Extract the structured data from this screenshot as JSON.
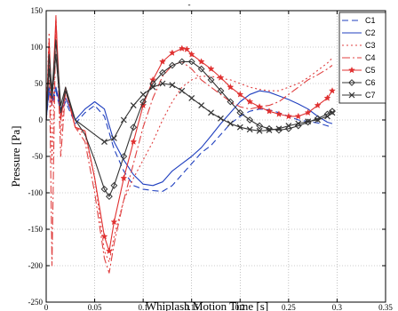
{
  "chart_data": {
    "type": "line",
    "title": "-",
    "xlabel": "Whiplash Motion Time [s]",
    "ylabel": "Pressure [Pa]",
    "xlim": [
      0,
      0.35
    ],
    "ylim": [
      -250,
      150
    ],
    "xticks": [
      0,
      0.05,
      0.1,
      0.15,
      0.2,
      0.25,
      0.3,
      0.35
    ],
    "xtick_labels": [
      "0",
      "0.05",
      "0.1",
      "0.15",
      "0.2",
      "0.25",
      "0.3",
      "0.35"
    ],
    "yticks": [
      -250,
      -200,
      -150,
      -100,
      -50,
      0,
      50,
      100,
      150
    ],
    "ytick_labels": [
      "-250",
      "-200",
      "-150",
      "-100",
      "-50",
      "0",
      "50",
      "100",
      "150"
    ],
    "grid": true,
    "legend_position": "top-right",
    "series": [
      {
        "name": "C1",
        "color": "#1f3fbf",
        "dash": "7,4",
        "marker": "none",
        "x": [
          0,
          0.003,
          0.006,
          0.01,
          0.015,
          0.02,
          0.03,
          0.04,
          0.05,
          0.06,
          0.07,
          0.08,
          0.09,
          0.1,
          0.11,
          0.12,
          0.13,
          0.14,
          0.15,
          0.16,
          0.17,
          0.18,
          0.19,
          0.2,
          0.21,
          0.22,
          0.23,
          0.24,
          0.25,
          0.26,
          0.27,
          0.28,
          0.29,
          0.295
        ],
        "y": [
          0,
          40,
          20,
          40,
          10,
          25,
          -5,
          10,
          20,
          5,
          -40,
          -70,
          -90,
          -95,
          -97,
          -98,
          -90,
          -75,
          -60,
          -45,
          -35,
          -20,
          -5,
          5,
          12,
          15,
          14,
          10,
          5,
          0,
          -2,
          -4,
          -8,
          -10
        ]
      },
      {
        "name": "C2",
        "color": "#1f3fbf",
        "dash": "",
        "marker": "none",
        "x": [
          0,
          0.003,
          0.006,
          0.01,
          0.015,
          0.02,
          0.03,
          0.04,
          0.05,
          0.06,
          0.07,
          0.08,
          0.09,
          0.1,
          0.11,
          0.12,
          0.13,
          0.14,
          0.15,
          0.16,
          0.17,
          0.18,
          0.19,
          0.2,
          0.21,
          0.22,
          0.23,
          0.24,
          0.25,
          0.26,
          0.27,
          0.28,
          0.29,
          0.295
        ],
        "y": [
          0,
          45,
          25,
          45,
          15,
          30,
          0,
          15,
          25,
          15,
          -30,
          -55,
          -75,
          -88,
          -90,
          -85,
          -70,
          -60,
          -50,
          -38,
          -22,
          -5,
          10,
          25,
          35,
          40,
          38,
          33,
          28,
          22,
          15,
          5,
          -3,
          -5
        ]
      },
      {
        "name": "C3",
        "color": "#e04040",
        "dash": "2,3",
        "marker": "none",
        "x": [
          0,
          0.003,
          0.006,
          0.01,
          0.015,
          0.02,
          0.03,
          0.04,
          0.05,
          0.06,
          0.065,
          0.07,
          0.08,
          0.09,
          0.1,
          0.11,
          0.12,
          0.13,
          0.14,
          0.15,
          0.16,
          0.17,
          0.18,
          0.19,
          0.2,
          0.21,
          0.22,
          0.23,
          0.24,
          0.25,
          0.26,
          0.27,
          0.28,
          0.29,
          0.295
        ],
        "y": [
          0,
          120,
          -60,
          130,
          -20,
          40,
          -10,
          -20,
          -80,
          -180,
          -195,
          -160,
          -110,
          -80,
          -55,
          -30,
          0,
          25,
          45,
          55,
          60,
          60,
          57,
          55,
          50,
          45,
          42,
          40,
          40,
          45,
          50,
          58,
          68,
          78,
          85
        ]
      },
      {
        "name": "C4",
        "color": "#e04040",
        "dash": "9,3,2,3",
        "marker": "none",
        "x": [
          0,
          0.003,
          0.006,
          0.01,
          0.015,
          0.02,
          0.03,
          0.04,
          0.05,
          0.06,
          0.065,
          0.07,
          0.08,
          0.09,
          0.1,
          0.11,
          0.12,
          0.13,
          0.14,
          0.15,
          0.16,
          0.17,
          0.18,
          0.19,
          0.2,
          0.21,
          0.22,
          0.23,
          0.24,
          0.25,
          0.26,
          0.27,
          0.28,
          0.29,
          0.295
        ],
        "y": [
          0,
          100,
          -200,
          145,
          -50,
          40,
          -10,
          -30,
          -100,
          -190,
          -210,
          -170,
          -110,
          -60,
          -10,
          30,
          60,
          75,
          80,
          70,
          55,
          45,
          35,
          25,
          18,
          15,
          18,
          20,
          25,
          35,
          45,
          55,
          62,
          70,
          75
        ]
      },
      {
        "name": "C5",
        "color": "#e03030",
        "dash": "",
        "marker": "star",
        "x": [
          0,
          0.003,
          0.006,
          0.01,
          0.015,
          0.02,
          0.03,
          0.04,
          0.05,
          0.06,
          0.065,
          0.07,
          0.08,
          0.09,
          0.1,
          0.11,
          0.12,
          0.13,
          0.14,
          0.145,
          0.15,
          0.16,
          0.17,
          0.18,
          0.19,
          0.2,
          0.21,
          0.22,
          0.23,
          0.24,
          0.25,
          0.26,
          0.27,
          0.28,
          0.29,
          0.295
        ],
        "y": [
          0,
          110,
          20,
          140,
          0,
          45,
          -10,
          -15,
          -80,
          -160,
          -180,
          -140,
          -80,
          -30,
          20,
          55,
          80,
          92,
          98,
          97,
          90,
          80,
          70,
          58,
          45,
          35,
          25,
          18,
          12,
          8,
          5,
          5,
          10,
          20,
          30,
          40
        ]
      },
      {
        "name": "C6",
        "color": "#333333",
        "dash": "",
        "marker": "diamond",
        "x": [
          0,
          0.003,
          0.006,
          0.01,
          0.015,
          0.02,
          0.03,
          0.04,
          0.05,
          0.06,
          0.065,
          0.07,
          0.08,
          0.09,
          0.1,
          0.11,
          0.12,
          0.13,
          0.14,
          0.15,
          0.16,
          0.17,
          0.18,
          0.19,
          0.2,
          0.21,
          0.22,
          0.23,
          0.24,
          0.25,
          0.26,
          0.27,
          0.28,
          0.29,
          0.295
        ],
        "y": [
          0,
          90,
          40,
          110,
          20,
          45,
          0,
          -20,
          -55,
          -95,
          -105,
          -90,
          -50,
          -10,
          25,
          50,
          65,
          75,
          80,
          80,
          70,
          55,
          40,
          25,
          10,
          0,
          -8,
          -12,
          -14,
          -12,
          -8,
          -3,
          2,
          8,
          12
        ]
      },
      {
        "name": "C7",
        "color": "#333333",
        "dash": "",
        "marker": "x",
        "x": [
          0,
          0.003,
          0.006,
          0.01,
          0.015,
          0.02,
          0.03,
          0.04,
          0.05,
          0.06,
          0.07,
          0.08,
          0.09,
          0.1,
          0.11,
          0.12,
          0.13,
          0.14,
          0.15,
          0.16,
          0.17,
          0.18,
          0.19,
          0.2,
          0.21,
          0.22,
          0.23,
          0.24,
          0.25,
          0.26,
          0.27,
          0.28,
          0.29,
          0.295
        ],
        "y": [
          0,
          70,
          30,
          90,
          10,
          40,
          0,
          -10,
          -20,
          -30,
          -25,
          0,
          20,
          35,
          45,
          50,
          48,
          40,
          30,
          20,
          10,
          2,
          -5,
          -10,
          -13,
          -15,
          -14,
          -12,
          -8,
          -5,
          -2,
          0,
          5,
          10
        ]
      }
    ]
  }
}
